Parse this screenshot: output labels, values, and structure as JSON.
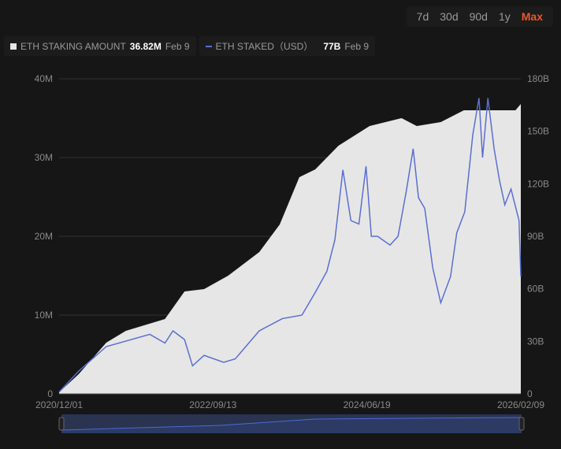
{
  "range_buttons": [
    "7d",
    "30d",
    "90d",
    "1y",
    "Max"
  ],
  "active_range": "Max",
  "legend": [
    {
      "name": "ETH STAKING AMOUNT",
      "value": "36.82M",
      "date": "Feb 9"
    },
    {
      "name": "ETH STAKED（USD）",
      "value": "77B",
      "date": "Feb 9"
    }
  ],
  "colors": {
    "area": "#e6e6e6",
    "line": "#5a6fd0",
    "accent": "#e8582c",
    "navigator": "#2c3a64"
  },
  "chart_data": {
    "type": "line",
    "x_unit": "decimal year",
    "x_ticks": [
      "2020/12/01",
      "2022/09/13",
      "2024/06/19",
      "2026/02/09"
    ],
    "xlim": [
      2020.92,
      2026.11
    ],
    "y_left": {
      "ticks": [
        "0",
        "10M",
        "20M",
        "30M",
        "40M"
      ],
      "ylim": [
        0,
        40
      ]
    },
    "y_right": {
      "ticks": [
        "0",
        "30B",
        "60B",
        "90B",
        "120B",
        "150B",
        "180B"
      ],
      "ylim": [
        0,
        180
      ]
    },
    "series": [
      {
        "name": "ETH STAKING AMOUNT",
        "type": "area",
        "axis": "left",
        "unit": "M ETH",
        "x": [
          2020.92,
          2021.14,
          2021.45,
          2021.67,
          2022.11,
          2022.33,
          2022.55,
          2022.82,
          2023.17,
          2023.4,
          2023.62,
          2023.8,
          2024.06,
          2024.41,
          2024.77,
          2024.94,
          2025.21,
          2025.47,
          2026.05,
          2026.11
        ],
        "y": [
          0.2,
          2.5,
          6.5,
          8,
          9.5,
          13,
          13.3,
          15,
          18,
          21.5,
          27.5,
          28.5,
          31.5,
          34,
          35,
          34,
          34.5,
          36,
          36,
          36.8
        ]
      },
      {
        "name": "ETH STAKED（USD）",
        "type": "line",
        "axis": "right",
        "unit": "B USD",
        "x": [
          2020.92,
          2021.14,
          2021.45,
          2021.94,
          2022.11,
          2022.2,
          2022.33,
          2022.42,
          2022.55,
          2022.77,
          2022.9,
          2023.17,
          2023.43,
          2023.65,
          2023.8,
          2023.93,
          2024.02,
          2024.11,
          2024.2,
          2024.29,
          2024.37,
          2024.43,
          2024.5,
          2024.64,
          2024.73,
          2024.82,
          2024.9,
          2024.96,
          2025.03,
          2025.12,
          2025.21,
          2025.32,
          2025.39,
          2025.48,
          2025.57,
          2025.64,
          2025.68,
          2025.74,
          2025.81,
          2025.87,
          2025.93,
          2026.0,
          2026.09,
          2026.15,
          2026.11
        ],
        "y": [
          1,
          13,
          27,
          34,
          29,
          36,
          31,
          16,
          22,
          18,
          20,
          36,
          43,
          45,
          58,
          70,
          88,
          128,
          99,
          97,
          130,
          90,
          90,
          85,
          90,
          115,
          140,
          112,
          106,
          72,
          52,
          67,
          92,
          104,
          148,
          169,
          135,
          169,
          140,
          122,
          108,
          117,
          99,
          67,
          67
        ]
      }
    ]
  }
}
